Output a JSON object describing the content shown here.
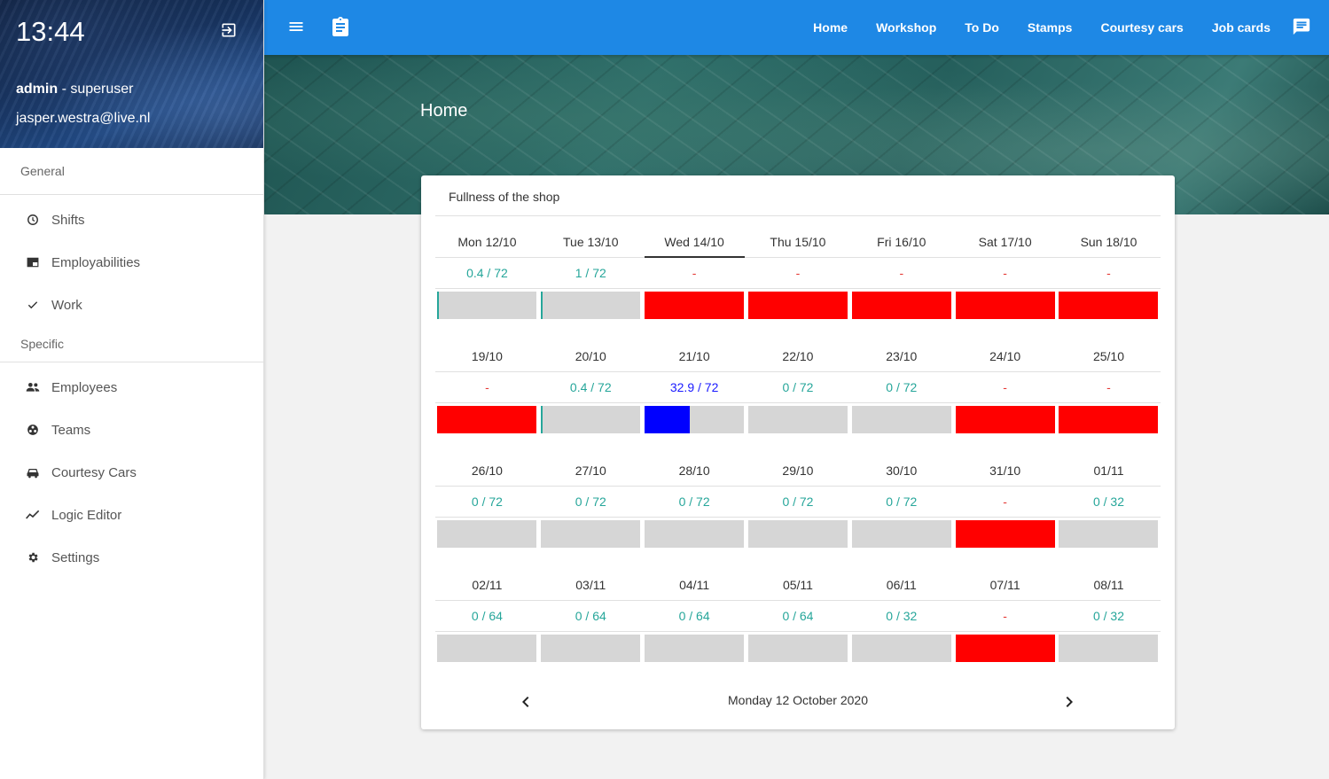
{
  "sidebar": {
    "clock": "13:44",
    "user_name": "admin",
    "user_role": " - superuser",
    "email": "jasper.westra@live.nl",
    "sections": [
      {
        "label": "General",
        "items": [
          {
            "label": "Shifts",
            "icon": "clock-icon"
          },
          {
            "label": "Employabilities",
            "icon": "card-icon"
          },
          {
            "label": "Work",
            "icon": "check-icon"
          }
        ]
      },
      {
        "label": "Specific",
        "items": [
          {
            "label": "Employees",
            "icon": "people-icon"
          },
          {
            "label": "Teams",
            "icon": "teams-icon"
          },
          {
            "label": "Courtesy Cars",
            "icon": "car-icon"
          },
          {
            "label": "Logic Editor",
            "icon": "trend-icon"
          },
          {
            "label": "Settings",
            "icon": "gear-icon"
          }
        ]
      }
    ]
  },
  "topbar": {
    "nav": [
      "Home",
      "Workshop",
      "To Do",
      "Stamps",
      "Courtesy cars",
      "Job cards"
    ]
  },
  "banner": {
    "title": "Home"
  },
  "card": {
    "title": "Fullness of the shop",
    "weeks": [
      {
        "dates": [
          "Mon 12/10",
          "Tue 13/10",
          "Wed 14/10",
          "Thu 15/10",
          "Fri 16/10",
          "Sat 17/10",
          "Sun 18/10"
        ],
        "values": [
          "0.4 / 72",
          "1 / 72",
          "-",
          "-",
          "-",
          "-",
          "-"
        ],
        "used": [
          0.4,
          1,
          null,
          null,
          null,
          null,
          null
        ],
        "capacity": [
          72,
          72,
          null,
          null,
          null,
          null,
          null
        ],
        "active_index": 2
      },
      {
        "dates": [
          "19/10",
          "20/10",
          "21/10",
          "22/10",
          "23/10",
          "24/10",
          "25/10"
        ],
        "values": [
          "-",
          "0.4 / 72",
          "32.9 / 72",
          "0 / 72",
          "0 / 72",
          "-",
          "-"
        ],
        "used": [
          null,
          0.4,
          32.9,
          0,
          0,
          null,
          null
        ],
        "capacity": [
          null,
          72,
          72,
          72,
          72,
          null,
          null
        ]
      },
      {
        "dates": [
          "26/10",
          "27/10",
          "28/10",
          "29/10",
          "30/10",
          "31/10",
          "01/11"
        ],
        "values": [
          "0 / 72",
          "0 / 72",
          "0 / 72",
          "0 / 72",
          "0 / 72",
          "-",
          "0 / 32"
        ],
        "used": [
          0,
          0,
          0,
          0,
          0,
          null,
          0
        ],
        "capacity": [
          72,
          72,
          72,
          72,
          72,
          null,
          32
        ]
      },
      {
        "dates": [
          "02/11",
          "03/11",
          "04/11",
          "05/11",
          "06/11",
          "07/11",
          "08/11"
        ],
        "values": [
          "0 / 64",
          "0 / 64",
          "0 / 64",
          "0 / 64",
          "0 / 32",
          "-",
          "0 / 32"
        ],
        "used": [
          0,
          0,
          0,
          0,
          0,
          null,
          0
        ],
        "capacity": [
          64,
          64,
          64,
          64,
          32,
          null,
          32
        ]
      }
    ],
    "current_date": "Monday 12 October 2020"
  },
  "colors": {
    "primary": "#1e88e5",
    "closed": "#ff0000",
    "empty_bar": "#d6d6d6",
    "low_fill": "#26a69a",
    "high_fill": "#0000ff",
    "value_ok": "#26a69a",
    "value_none": "#e53935"
  }
}
